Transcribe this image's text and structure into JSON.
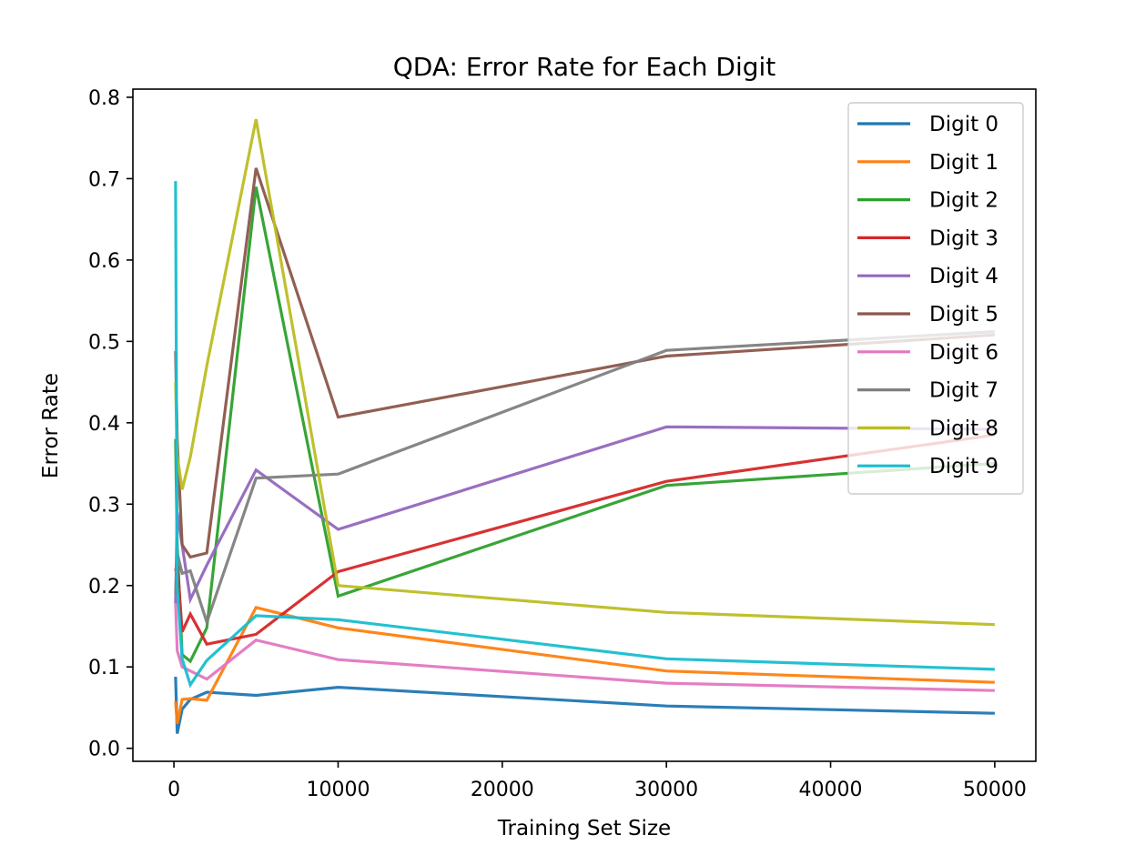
{
  "chart_data": {
    "type": "line",
    "title": "QDA: Error Rate for Each Digit",
    "xlabel": "Training Set Size",
    "ylabel": "Error Rate",
    "xlim": [
      -2500,
      52500
    ],
    "ylim": [
      -0.016,
      0.81
    ],
    "xticks": [
      0,
      10000,
      20000,
      30000,
      40000,
      50000
    ],
    "yticks": [
      0.0,
      0.1,
      0.2,
      0.3,
      0.4,
      0.5,
      0.6,
      0.7,
      0.8
    ],
    "xtick_labels": [
      "0",
      "10000",
      "20000",
      "30000",
      "40000",
      "50000"
    ],
    "ytick_labels": [
      "0.0",
      "0.1",
      "0.2",
      "0.3",
      "0.4",
      "0.5",
      "0.6",
      "0.7",
      "0.8"
    ],
    "grid": false,
    "legend_position": "top-right",
    "x": [
      100,
      200,
      500,
      1000,
      2000,
      5000,
      10000,
      30000,
      50000
    ],
    "series": [
      {
        "name": "Digit 0",
        "color": "#1f77b4",
        "values": [
          0.088,
          0.018,
          0.048,
          0.06,
          0.069,
          0.065,
          0.075,
          0.052,
          0.043
        ]
      },
      {
        "name": "Digit 1",
        "color": "#ff7f0e",
        "values": [
          0.058,
          0.03,
          0.06,
          0.061,
          0.059,
          0.173,
          0.148,
          0.095,
          0.081
        ]
      },
      {
        "name": "Digit 2",
        "color": "#2ca02c",
        "values": [
          0.38,
          0.25,
          0.115,
          0.107,
          0.148,
          0.69,
          0.187,
          0.323,
          0.35
        ]
      },
      {
        "name": "Digit 3",
        "color": "#d62728",
        "values": [
          0.218,
          0.23,
          0.143,
          0.165,
          0.128,
          0.14,
          0.217,
          0.328,
          0.385
        ]
      },
      {
        "name": "Digit 4",
        "color": "#9467bd",
        "values": [
          0.178,
          0.29,
          0.25,
          0.183,
          0.225,
          0.342,
          0.269,
          0.395,
          0.392
        ]
      },
      {
        "name": "Digit 5",
        "color": "#8c564b",
        "values": [
          0.488,
          0.38,
          0.25,
          0.235,
          0.24,
          0.713,
          0.407,
          0.482,
          0.508
        ]
      },
      {
        "name": "Digit 6",
        "color": "#e377c2",
        "values": [
          0.178,
          0.12,
          0.1,
          0.095,
          0.085,
          0.133,
          0.109,
          0.08,
          0.071
        ]
      },
      {
        "name": "Digit 7",
        "color": "#7f7f7f",
        "values": [
          0.19,
          0.24,
          0.215,
          0.218,
          0.155,
          0.332,
          0.337,
          0.489,
          0.512
        ]
      },
      {
        "name": "Digit 8",
        "color": "#bcbd22",
        "values": [
          0.45,
          0.36,
          0.318,
          0.358,
          0.47,
          0.773,
          0.2,
          0.167,
          0.152
        ]
      },
      {
        "name": "Digit 9",
        "color": "#17becf",
        "values": [
          0.697,
          0.2,
          0.11,
          0.078,
          0.108,
          0.163,
          0.158,
          0.11,
          0.097
        ]
      }
    ]
  }
}
